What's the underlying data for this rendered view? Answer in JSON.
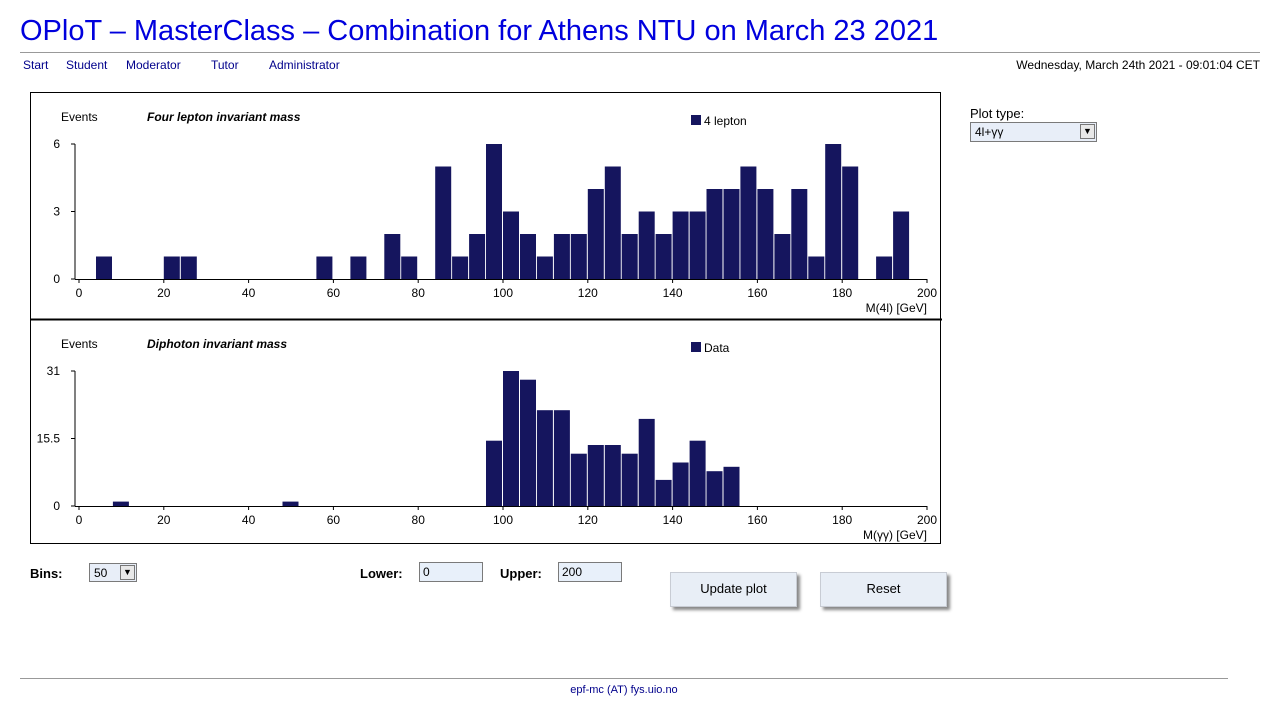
{
  "header": {
    "title": "OPloT – MasterClass – Combination for Athens NTU on March 23 2021",
    "nav": [
      "Start",
      "Student",
      "Moderator",
      "Tutor",
      "Administrator"
    ],
    "datetime": "Wednesday, March 24th 2021 - 09:01:04 CET"
  },
  "plot_type": {
    "label": "Plot type:",
    "value": "4l+γγ"
  },
  "controls": {
    "bins_label": "Bins:",
    "bins_value": "50",
    "lower_label": "Lower:",
    "lower_value": "0",
    "upper_label": "Upper:",
    "upper_value": "200",
    "update_label": "Update plot",
    "reset_label": "Reset"
  },
  "footer": {
    "contact": "epf-mc (AT) fys.uio.no"
  },
  "colors": {
    "bar": "#15155e",
    "title": "#0000dd",
    "link": "#00008b"
  },
  "chart_data": [
    {
      "type": "bar",
      "title": "Four lepton invariant mass",
      "ylabel": "Events",
      "xlabel": "M(4l) [GeV]",
      "legend": "4 lepton",
      "legend_position": "top-right",
      "bin_width": 4,
      "x": [
        4,
        20,
        24,
        56,
        64,
        72,
        76,
        84,
        88,
        92,
        96,
        100,
        104,
        108,
        112,
        116,
        120,
        124,
        128,
        132,
        136,
        140,
        144,
        148,
        152,
        156,
        160,
        164,
        168,
        172,
        176,
        180,
        188,
        192,
        196
      ],
      "values": [
        1,
        1,
        1,
        1,
        1,
        2,
        1,
        5,
        1,
        2,
        6,
        3,
        2,
        1,
        2,
        2,
        4,
        5,
        2,
        3,
        2,
        3,
        3,
        4,
        4,
        5,
        4,
        2,
        4,
        1,
        6,
        5,
        1,
        3,
        0
      ],
      "xlim": [
        0,
        200
      ],
      "ylim": [
        0,
        6
      ],
      "xticks": [
        "0",
        "20",
        "40",
        "60",
        "80",
        "100",
        "120",
        "140",
        "160",
        "180",
        "200"
      ],
      "yticks": [
        "0",
        "3",
        "6"
      ]
    },
    {
      "type": "bar",
      "title": "Diphoton invariant mass",
      "ylabel": "Events",
      "xlabel": "M(γγ) [GeV]",
      "legend": "Data",
      "legend_position": "top-right",
      "bin_width": 4,
      "x": [
        8,
        48,
        96,
        100,
        104,
        108,
        112,
        116,
        120,
        124,
        128,
        132,
        136,
        140,
        144,
        148,
        152,
        156
      ],
      "values": [
        1,
        1,
        15,
        31,
        29,
        22,
        22,
        12,
        14,
        14,
        12,
        20,
        6,
        10,
        15,
        8,
        9,
        0
      ],
      "xlim": [
        0,
        200
      ],
      "ylim": [
        0,
        31
      ],
      "xticks": [
        "0",
        "20",
        "40",
        "60",
        "80",
        "100",
        "120",
        "140",
        "160",
        "180",
        "200"
      ],
      "yticks": [
        "0",
        "15.5",
        "31"
      ]
    }
  ]
}
